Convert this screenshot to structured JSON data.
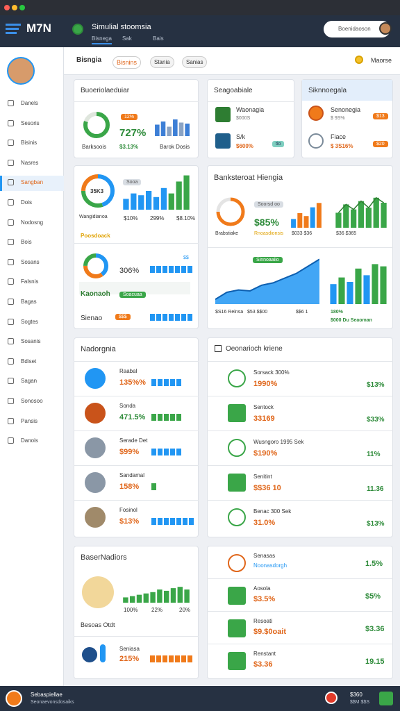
{
  "window": {
    "logo": "M7N",
    "title": "Simulial stoomsia",
    "tabs": [
      "Bisnega",
      "Sak",
      "Bais"
    ],
    "search": "Boenidaoson"
  },
  "sidebar": {
    "items": [
      "Danels",
      "Sesoris",
      "Bisinis",
      "Nasres",
      "Sangban",
      "Dois",
      "Nodosng",
      "Bois",
      "Sosans",
      "Falsnis",
      "Bagas",
      "Sogtes",
      "Sosanis",
      "Bdiset",
      "Sagan",
      "Sonosoo",
      "Pansis",
      "Danois"
    ],
    "active": 4
  },
  "tabs": {
    "items": [
      "Bisngia",
      "Bisnins",
      "Stania",
      "Sanias"
    ],
    "active": 1,
    "right": "Maorse"
  },
  "card_a": {
    "title": "Buoeriolaeduiar",
    "pill": "12%",
    "value": "727%",
    "footer": [
      "Barksoois",
      "$3.13%",
      "Barok Dosis"
    ],
    "donut": {
      "values": [
        80,
        20
      ],
      "colors": [
        "#3aa648",
        "#dfe6dd"
      ]
    },
    "chart": {
      "values": [
        55,
        70,
        45,
        80,
        65,
        60
      ],
      "colors": [
        "#3d7fd6",
        "#3d7fd6",
        "#8aa3c4",
        "#3d7fd6",
        "#8aa3c4",
        "#3d7fd6"
      ],
      "ylim": [
        0,
        100
      ]
    }
  },
  "card_b": {
    "title": "Seagoabiale",
    "items": [
      {
        "label": "Waonagia",
        "value": "$000S"
      },
      {
        "label": "S/k",
        "value": "$600%",
        "pill": "tio"
      }
    ]
  },
  "card_c": {
    "title": "Siknnoegala",
    "items": [
      {
        "label": "Senonegia",
        "value": "$ 9S%",
        "pill": "$13"
      },
      {
        "label": "Fiace",
        "value": "$ 3S16%",
        "pill": "$20"
      }
    ]
  },
  "card_d": {
    "donut_label": "35K3",
    "pill": "Sooa",
    "caption": "Wangidianoa",
    "labels": [
      "$10%",
      "299%",
      "$8.10%"
    ],
    "highlight": "Poosdoack",
    "donut": {
      "values": [
        45,
        30,
        25
      ],
      "colors": [
        "#2196f3",
        "#3aa648",
        "#f07a1a"
      ]
    },
    "chart": {
      "values": [
        30,
        45,
        40,
        52,
        35,
        60,
        45,
        78,
        95
      ],
      "colors": [
        "#2196f3",
        "#2196f3",
        "#2196f3",
        "#2196f3",
        "#2196f3",
        "#2196f3",
        "#3aa648",
        "#3aa648",
        "#3aa648"
      ],
      "ylim": [
        0,
        100
      ]
    },
    "second": {
      "value": "306%",
      "small": "$$",
      "donut": {
        "values": [
          40,
          35,
          25
        ],
        "colors": [
          "#2196f3",
          "#f07a1a",
          "#3aa648"
        ]
      },
      "label": "Kaonaoh",
      "pill": "Soacuaa",
      "bottom": "Sienao",
      "bottom_pill": "$$$"
    }
  },
  "card_e": {
    "title": "Banksteroat Hiengia",
    "pill": "Soorsd oo",
    "value": "$85%",
    "labels": [
      "Brabstiake",
      "Rnoasdionsis",
      "$033 $36",
      "$36 $365"
    ],
    "ring": {
      "values": [
        75,
        25
      ],
      "colors": [
        "#f07a1a",
        "#e4e4e4"
      ]
    },
    "chart1": {
      "values": [
        30,
        50,
        40,
        70,
        85
      ],
      "colors": [
        "#2196f3",
        "#f07a1a",
        "#f07a1a",
        "#2196f3",
        "#f07a1a"
      ],
      "ylim": [
        0,
        100
      ]
    },
    "chart2": {
      "values": [
        45,
        70,
        55,
        80,
        60,
        90,
        75
      ],
      "colors": [
        "#3aa648",
        "#3aa648",
        "#3aa648",
        "#3aa648",
        "#3aa648",
        "#3aa648",
        "#3aa648"
      ],
      "ylim": [
        0,
        100
      ]
    },
    "area_pill": "Sinnoaaiio",
    "area": {
      "values": [
        10,
        25,
        30,
        28,
        40,
        45,
        55,
        65,
        80,
        95
      ],
      "color": "#2196f3",
      "ylim": [
        0,
        100
      ]
    },
    "chart3": {
      "values": [
        45,
        60,
        50,
        80,
        65,
        90,
        85
      ],
      "colors": [
        "#2196f3",
        "#3aa648",
        "#2196f3",
        "#3aa648",
        "#2196f3",
        "#3aa648",
        "#3aa648"
      ],
      "ylim": [
        0,
        100
      ]
    },
    "bottom": [
      "$S16 Reinsa",
      "$53 $$00",
      "$$6 1",
      "180%",
      "$000 Du Seaoman"
    ]
  },
  "list_left": {
    "title": "Nadorgnia",
    "rows": [
      {
        "label": "Raabal",
        "value": "135%%"
      },
      {
        "label": "Sonda",
        "value": "471.5%"
      },
      {
        "label": "Serade Det",
        "value": "$99%"
      },
      {
        "label": "Sandamal",
        "value": "158%"
      },
      {
        "label": "Fosinol",
        "value": "$13%"
      }
    ]
  },
  "list_right": {
    "title": "Oeonarioch kriene",
    "rows": [
      {
        "label": "Sorsack 300%",
        "value": "1990%",
        "right": "$13%"
      },
      {
        "label": "Sentock",
        "value": "33169",
        "right": "$33%"
      },
      {
        "label": "Wusngoro 1995 Sek",
        "value": "$190%",
        "right": "11%"
      },
      {
        "label": "Senitint",
        "value": "$$36 10",
        "right": "11.36"
      },
      {
        "label": "Benac 300 Sek",
        "value": "31.0%",
        "right": "$13%"
      }
    ]
  },
  "card_f": {
    "title": "BaserNadiors",
    "labels": [
      "100%",
      "22%",
      "20%"
    ],
    "caption": "Besoas Otdt",
    "row_label": "Seniasa",
    "row_value": "215%",
    "chart": {
      "values": [
        20,
        25,
        30,
        35,
        40,
        50,
        45,
        55,
        60,
        50
      ],
      "colors": [
        "#3aa648",
        "#3aa648",
        "#3aa648",
        "#3aa648",
        "#3aa648",
        "#3aa648",
        "#3aa648",
        "#3aa648",
        "#3aa648",
        "#3aa648"
      ],
      "ylim": [
        0,
        100
      ]
    }
  },
  "list_bottom": {
    "rows": [
      {
        "label": "Senasas",
        "value": "Noonasdorgh",
        "right": "1.5%"
      },
      {
        "label": "Aosola",
        "value": "$3.5%",
        "right": "$5%"
      },
      {
        "label": "Resoati",
        "value": "$9.$0oait",
        "right": "$3.36"
      },
      {
        "label": "Renstant",
        "value": "$3.36",
        "right": "19.15"
      }
    ]
  },
  "status": {
    "name": "Sebaspiellae",
    "sub": "Seonaevonsdosaiks",
    "right": "$360",
    "right_sub": "$$M $$S"
  }
}
